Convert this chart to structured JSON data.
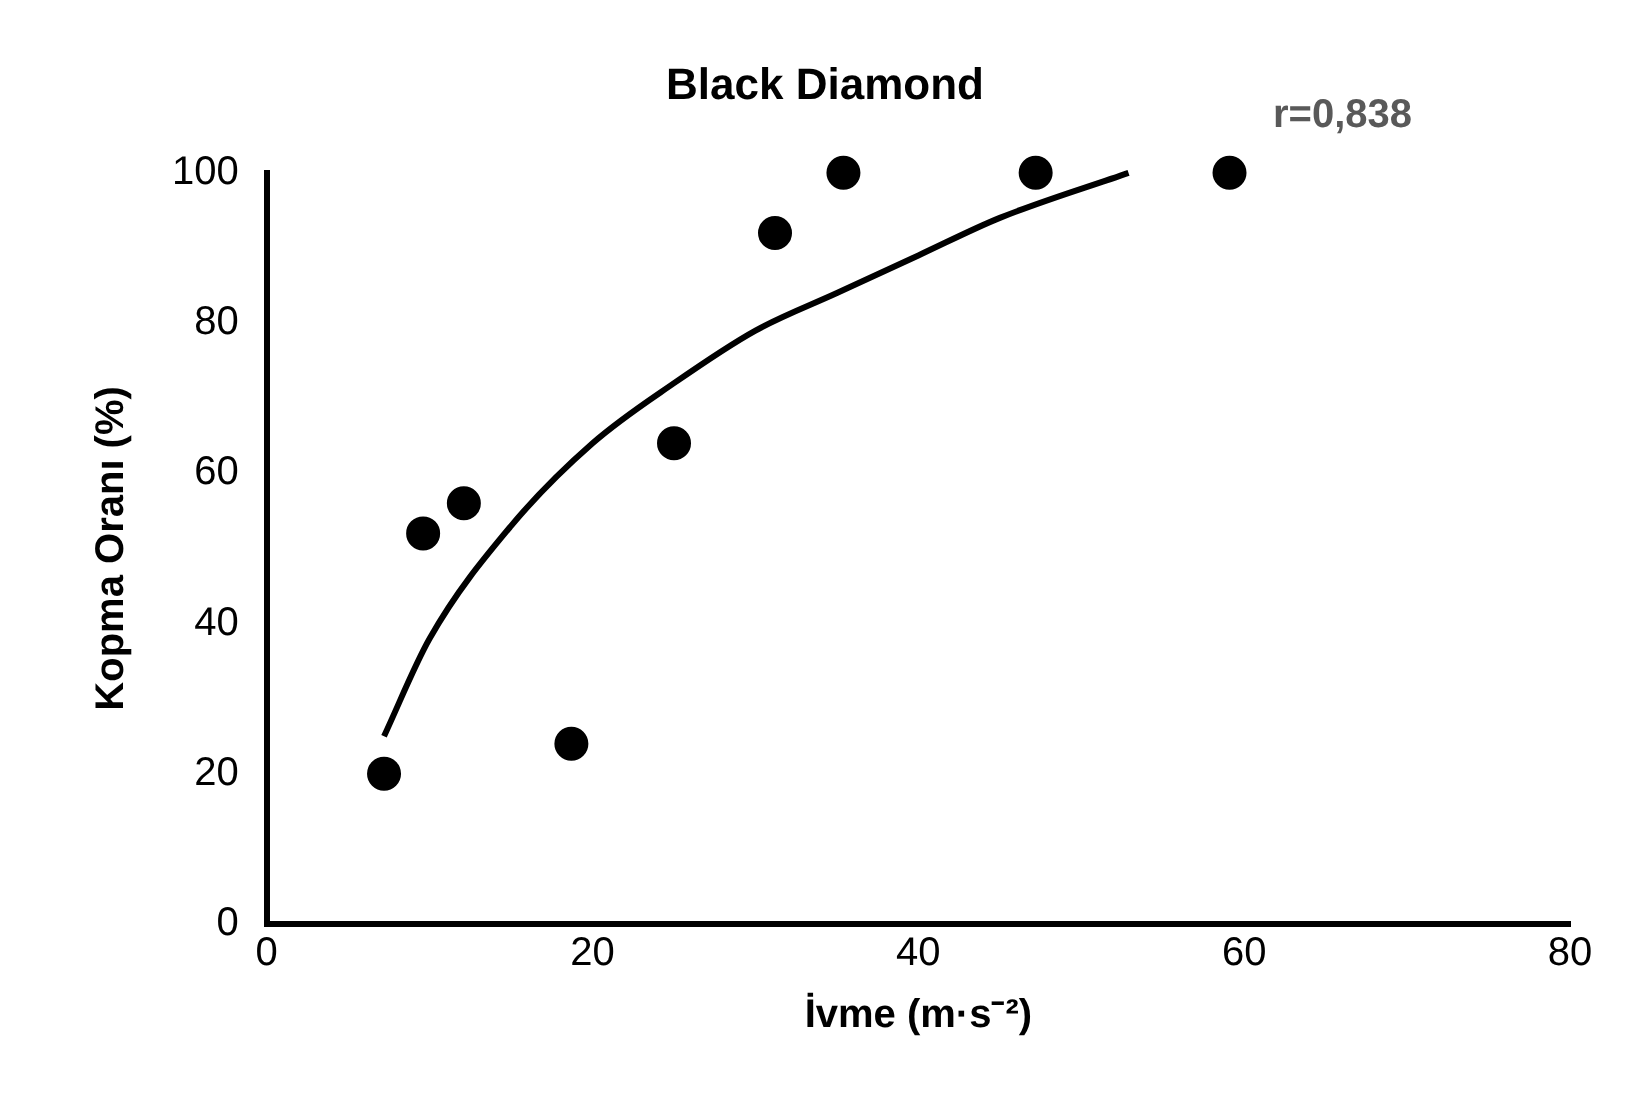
{
  "chart_data": {
    "type": "scatter",
    "title": "Black Diamond",
    "xlabel": "İvme (m·s⁻²)",
    "ylabel": "Kopma Oranı (%)",
    "annotations": [
      "r=0,838"
    ],
    "series": [
      {
        "marker": "circle",
        "color": "#000000",
        "x": [
          7.2,
          9.6,
          12.1,
          18.7,
          25.0,
          31.2,
          35.4,
          47.2,
          59.1
        ],
        "values": [
          20,
          52,
          56,
          24,
          64,
          92,
          100,
          100,
          100
        ]
      },
      {
        "type": "line",
        "marker": "none",
        "color": "#000000",
        "x": [
          7.2,
          10,
          15,
          20,
          25,
          30,
          35,
          40,
          45,
          52.9
        ],
        "values": [
          25,
          38,
          53,
          64,
          72,
          79,
          84,
          89,
          94,
          100
        ]
      }
    ],
    "xlim": [
      0,
      80
    ],
    "xticks": [
      0,
      20,
      40,
      60,
      80
    ],
    "ylim": [
      0,
      100
    ],
    "yticks": [
      0,
      20,
      40,
      60,
      80,
      100
    ],
    "grid": false,
    "legend": false,
    "line_style": "solid"
  }
}
